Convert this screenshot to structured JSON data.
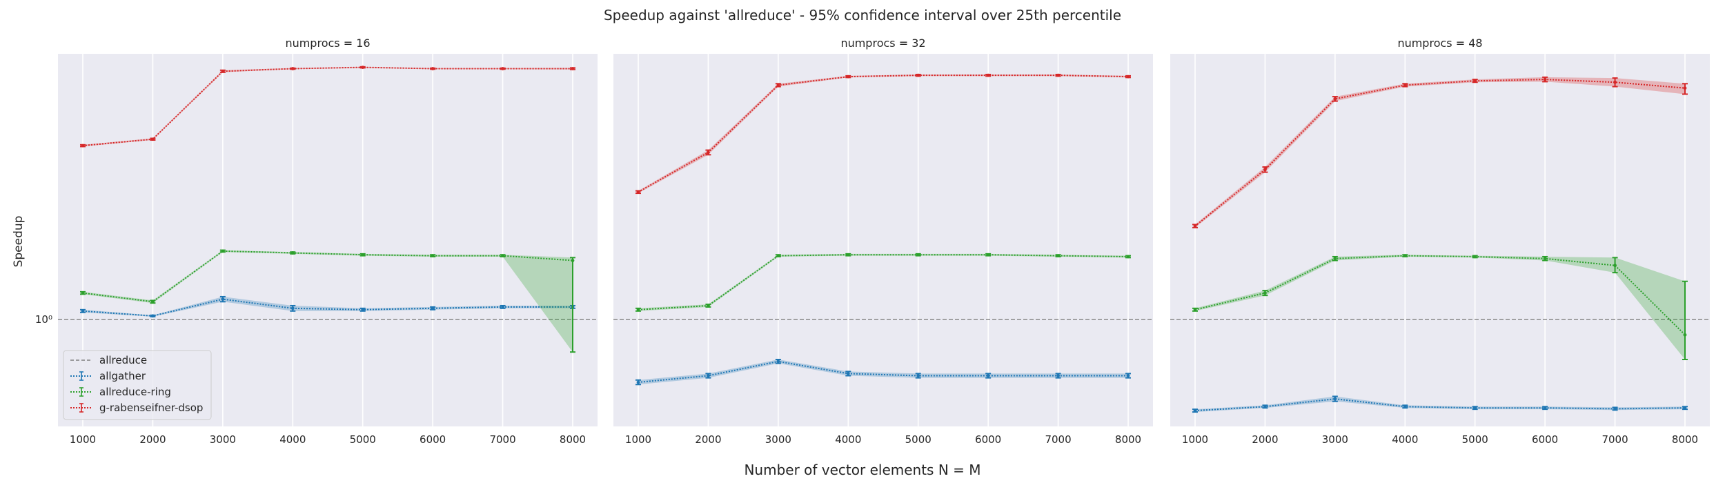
{
  "title": "Speedup against 'allreduce' - 95% confidence interval over 25th percentile",
  "xlabel": "Number of vector elements N = M",
  "ylabel": "Speedup",
  "ytick_label": "10⁰",
  "colors": {
    "allreduce": "#808080",
    "allgather": "#1f77b4",
    "allreduce-ring": "#2ca02c",
    "g-rabenseifner-dsop": "#d62728",
    "panel_bg": "#eaeaf2",
    "grid": "#ffffff"
  },
  "legend": {
    "placement": "lower-left",
    "entries": [
      "allreduce",
      "allgather",
      "allreduce-ring",
      "g-rabenseifner-dsop"
    ]
  },
  "chart_data": {
    "type": "line",
    "scale": "log",
    "x_ticks": [
      1000,
      2000,
      3000,
      4000,
      5000,
      6000,
      7000,
      8000
    ],
    "baseline": {
      "name": "allreduce",
      "value": 1.0
    },
    "panels": [
      {
        "title": "numprocs = 16",
        "ylim": [
          0.48,
          6.2
        ],
        "series": [
          {
            "name": "allgather",
            "x": [
              1000,
              2000,
              3000,
              4000,
              5000,
              6000,
              7000,
              8000
            ],
            "y": [
              1.06,
              1.025,
              1.15,
              1.08,
              1.07,
              1.08,
              1.09,
              1.09
            ],
            "lo": [
              1.05,
              1.02,
              1.13,
              1.06,
              1.06,
              1.07,
              1.08,
              1.08
            ],
            "hi": [
              1.07,
              1.03,
              1.17,
              1.1,
              1.08,
              1.09,
              1.1,
              1.1
            ]
          },
          {
            "name": "allreduce-ring",
            "x": [
              1000,
              2000,
              3000,
              4000,
              5000,
              6000,
              7000,
              8000
            ],
            "y": [
              1.2,
              1.13,
              1.6,
              1.58,
              1.56,
              1.55,
              1.55,
              1.5
            ],
            "lo": [
              1.19,
              1.12,
              1.59,
              1.57,
              1.55,
              1.54,
              1.54,
              0.8
            ],
            "hi": [
              1.21,
              1.14,
              1.61,
              1.59,
              1.57,
              1.56,
              1.56,
              1.53
            ]
          },
          {
            "name": "g-rabenseifner-dsop",
            "x": [
              1000,
              2000,
              3000,
              4000,
              5000,
              6000,
              7000,
              8000
            ],
            "y": [
              3.3,
              3.45,
              5.5,
              5.6,
              5.65,
              5.6,
              5.6,
              5.6
            ],
            "lo": [
              3.28,
              3.43,
              5.46,
              5.58,
              5.63,
              5.58,
              5.58,
              5.57
            ],
            "hi": [
              3.32,
              3.47,
              5.54,
              5.62,
              5.67,
              5.62,
              5.62,
              5.63
            ]
          }
        ]
      },
      {
        "title": "numprocs = 32",
        "ylim": [
          0.48,
          6.2
        ],
        "series": [
          {
            "name": "allgather",
            "x": [
              1000,
              2000,
              3000,
              4000,
              5000,
              6000,
              7000,
              8000
            ],
            "y": [
              0.65,
              0.68,
              0.75,
              0.69,
              0.68,
              0.68,
              0.68,
              0.68
            ],
            "lo": [
              0.64,
              0.67,
              0.74,
              0.68,
              0.67,
              0.67,
              0.67,
              0.67
            ],
            "hi": [
              0.66,
              0.69,
              0.76,
              0.7,
              0.69,
              0.69,
              0.69,
              0.69
            ]
          },
          {
            "name": "allreduce-ring",
            "x": [
              1000,
              2000,
              3000,
              4000,
              5000,
              6000,
              7000,
              8000
            ],
            "y": [
              1.07,
              1.1,
              1.55,
              1.56,
              1.56,
              1.56,
              1.55,
              1.54
            ],
            "lo": [
              1.06,
              1.09,
              1.54,
              1.55,
              1.55,
              1.55,
              1.54,
              1.53
            ],
            "hi": [
              1.08,
              1.11,
              1.56,
              1.57,
              1.57,
              1.57,
              1.56,
              1.55
            ]
          },
          {
            "name": "g-rabenseifner-dsop",
            "x": [
              1000,
              2000,
              3000,
              4000,
              5000,
              6000,
              7000,
              8000
            ],
            "y": [
              2.4,
              3.15,
              5.0,
              5.3,
              5.35,
              5.35,
              5.35,
              5.3
            ],
            "lo": [
              2.38,
              3.1,
              4.95,
              5.27,
              5.32,
              5.32,
              5.32,
              5.27
            ],
            "hi": [
              2.42,
              3.2,
              5.05,
              5.33,
              5.38,
              5.38,
              5.38,
              5.33
            ]
          }
        ]
      },
      {
        "title": "numprocs = 48",
        "ylim": [
          0.48,
          6.2
        ],
        "series": [
          {
            "name": "allgather",
            "x": [
              1000,
              2000,
              3000,
              4000,
              5000,
              6000,
              7000,
              8000
            ],
            "y": [
              0.535,
              0.55,
              0.58,
              0.55,
              0.545,
              0.545,
              0.542,
              0.545
            ],
            "lo": [
              0.53,
              0.545,
              0.57,
              0.545,
              0.54,
              0.54,
              0.537,
              0.54
            ],
            "hi": [
              0.54,
              0.555,
              0.59,
              0.555,
              0.55,
              0.55,
              0.547,
              0.55
            ]
          },
          {
            "name": "allreduce-ring",
            "x": [
              1000,
              2000,
              3000,
              4000,
              5000,
              6000,
              7000,
              8000
            ],
            "y": [
              1.07,
              1.2,
              1.52,
              1.55,
              1.54,
              1.52,
              1.45,
              0.9
            ],
            "lo": [
              1.06,
              1.18,
              1.5,
              1.54,
              1.53,
              1.5,
              1.38,
              0.76
            ],
            "hi": [
              1.08,
              1.22,
              1.54,
              1.56,
              1.55,
              1.54,
              1.53,
              1.3
            ]
          },
          {
            "name": "g-rabenseifner-dsop",
            "x": [
              1000,
              2000,
              3000,
              4000,
              5000,
              6000,
              7000,
              8000
            ],
            "y": [
              1.9,
              2.8,
              4.55,
              5.0,
              5.15,
              5.2,
              5.1,
              4.9
            ],
            "lo": [
              1.88,
              2.75,
              4.48,
              4.95,
              5.1,
              5.12,
              4.95,
              4.7
            ],
            "hi": [
              1.92,
              2.85,
              4.62,
              5.05,
              5.2,
              5.28,
              5.25,
              5.05
            ]
          }
        ]
      }
    ]
  }
}
